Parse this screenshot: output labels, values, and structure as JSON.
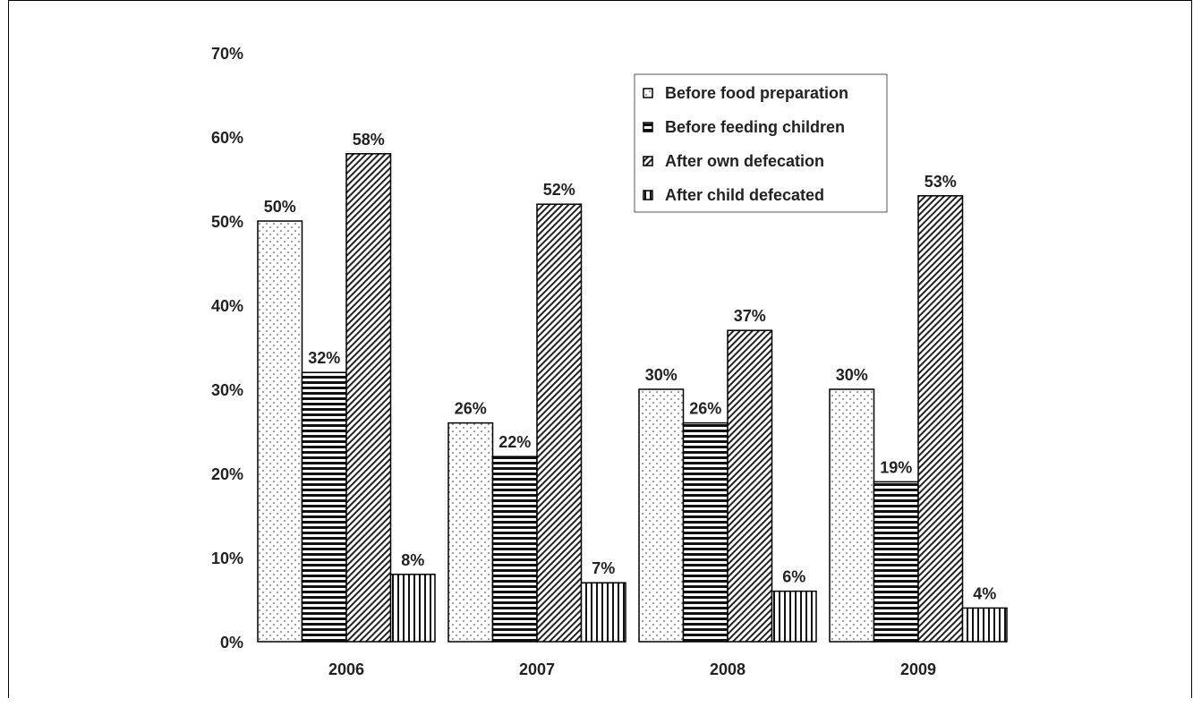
{
  "chart_data": {
    "type": "bar",
    "title": "",
    "xlabel": "",
    "ylabel": "",
    "categories": [
      "2006",
      "2007",
      "2008",
      "2009"
    ],
    "ylim": [
      0,
      70
    ],
    "y_ticks": [
      "0%",
      "10%",
      "20%",
      "30%",
      "40%",
      "50%",
      "60%",
      "70%"
    ],
    "grid": false,
    "legend_position": "top-right",
    "series": [
      {
        "name": "Before food preparation",
        "pattern": "dots",
        "values": [
          50,
          26,
          30,
          30
        ],
        "labels": [
          "50%",
          "26%",
          "30%",
          "30%"
        ]
      },
      {
        "name": "Before feeding children",
        "pattern": "horizontal-lines",
        "values": [
          32,
          22,
          26,
          19
        ],
        "labels": [
          "32%",
          "22%",
          "26%",
          "19%"
        ]
      },
      {
        "name": "After own defecation",
        "pattern": "diagonal-lines",
        "values": [
          58,
          52,
          37,
          53
        ],
        "labels": [
          "58%",
          "52%",
          "37%",
          "53%"
        ]
      },
      {
        "name": "After child defecated",
        "pattern": "vertical-lines",
        "values": [
          8,
          7,
          6,
          4
        ],
        "labels": [
          "8%",
          "7%",
          "6%",
          "4%"
        ]
      }
    ]
  }
}
